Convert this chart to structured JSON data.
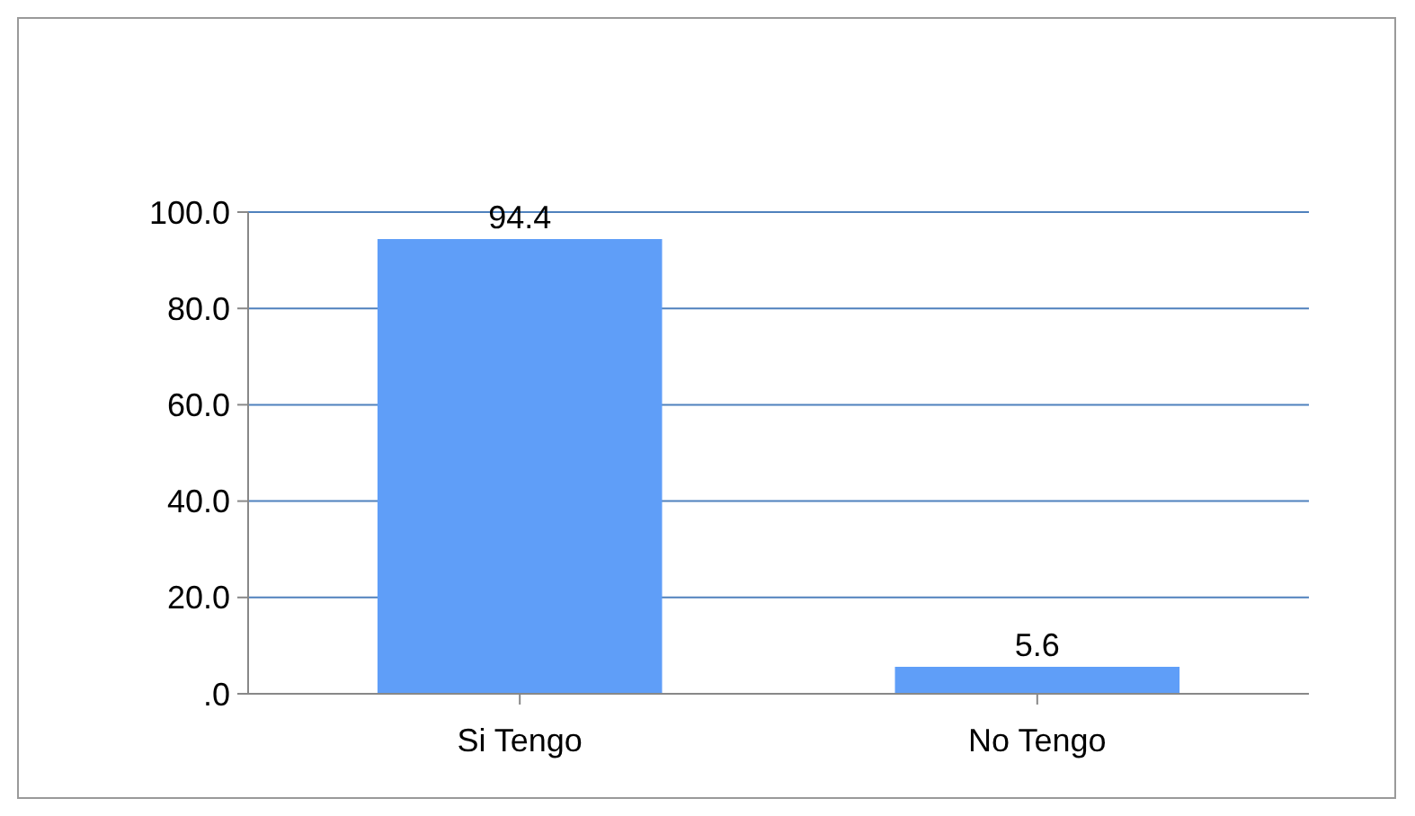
{
  "chart_data": {
    "type": "bar",
    "categories": [
      "Si Tengo",
      "No Tengo"
    ],
    "values": [
      94.4,
      5.6
    ],
    "color": "#5f9ef8",
    "ylim": [
      0,
      100
    ],
    "yticks": [
      {
        "value": 0,
        "label": ".0"
      },
      {
        "value": 20,
        "label": "20.0"
      },
      {
        "value": 40,
        "label": "40.0"
      },
      {
        "value": 60,
        "label": "60.0"
      },
      {
        "value": 80,
        "label": "80.0"
      },
      {
        "value": 100,
        "label": "100.0"
      }
    ],
    "grid": "y",
    "data_labels": true
  }
}
